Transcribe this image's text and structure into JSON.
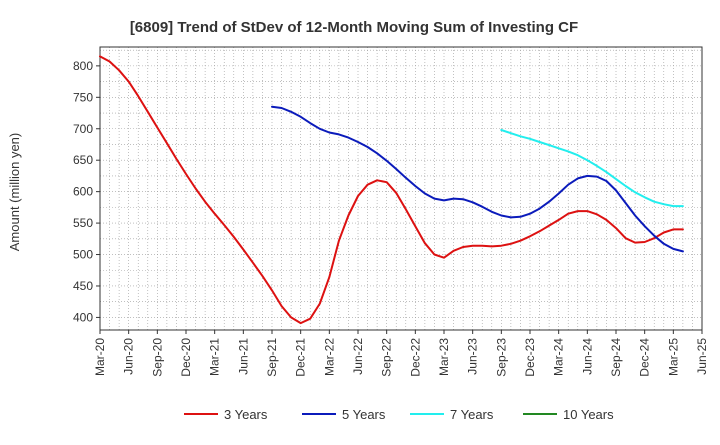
{
  "chart_data": {
    "type": "line",
    "title": "[6809]  Trend of StDev of 12-Month Moving Sum of Investing CF",
    "xlabel": "",
    "ylabel": "Amount (million yen)",
    "ylim": [
      380,
      830
    ],
    "yticks": [
      400,
      450,
      500,
      550,
      600,
      650,
      700,
      750,
      800
    ],
    "x_tick_labels": [
      "Mar-20",
      "Jun-20",
      "Sep-20",
      "Dec-20",
      "Mar-21",
      "Jun-21",
      "Sep-21",
      "Dec-21",
      "Mar-22",
      "Jun-22",
      "Sep-22",
      "Dec-22",
      "Mar-23",
      "Jun-23",
      "Sep-23",
      "Dec-23",
      "Mar-24",
      "Jun-24",
      "Sep-24",
      "Dec-24",
      "Mar-25",
      "Jun-25"
    ],
    "grid": true,
    "legend_position": "bottom",
    "series": [
      {
        "name": "3 Years",
        "color": "#dd1111",
        "start": "Mar-20",
        "values": [
          815,
          807,
          793,
          775,
          752,
          727,
          702,
          677,
          652,
          628,
          605,
          584,
          565,
          547,
          528,
          508,
          487,
          466,
          443,
          418,
          400,
          391,
          398,
          422,
          464,
          522,
          562,
          593,
          611,
          618,
          615,
          598,
          572,
          545,
          518,
          500,
          495,
          506,
          512,
          514,
          514,
          513,
          514,
          517,
          522,
          529,
          537,
          546,
          555,
          565,
          569,
          569,
          564,
          555,
          542,
          526,
          519,
          520,
          526,
          535,
          540,
          540
        ]
      },
      {
        "name": "5 Years",
        "color": "#0b1bbb",
        "start": "Sep-21",
        "values": [
          735,
          733,
          727,
          719,
          709,
          700,
          694,
          691,
          686,
          679,
          671,
          661,
          649,
          636,
          622,
          609,
          597,
          589,
          586,
          589,
          588,
          583,
          576,
          568,
          562,
          559,
          560,
          565,
          573,
          584,
          597,
          611,
          621,
          625,
          624,
          617,
          602,
          582,
          562,
          545,
          530,
          517,
          509,
          505
        ]
      },
      {
        "name": "7 Years",
        "color": "#22eeee",
        "start": "Sep-23",
        "values": [
          698,
          693,
          688,
          684,
          679,
          674,
          669,
          664,
          658,
          650,
          641,
          631,
          620,
          609,
          599,
          591,
          584,
          580,
          577,
          577
        ]
      },
      {
        "name": "10 Years",
        "color": "#228822",
        "start": "",
        "values": []
      }
    ]
  }
}
